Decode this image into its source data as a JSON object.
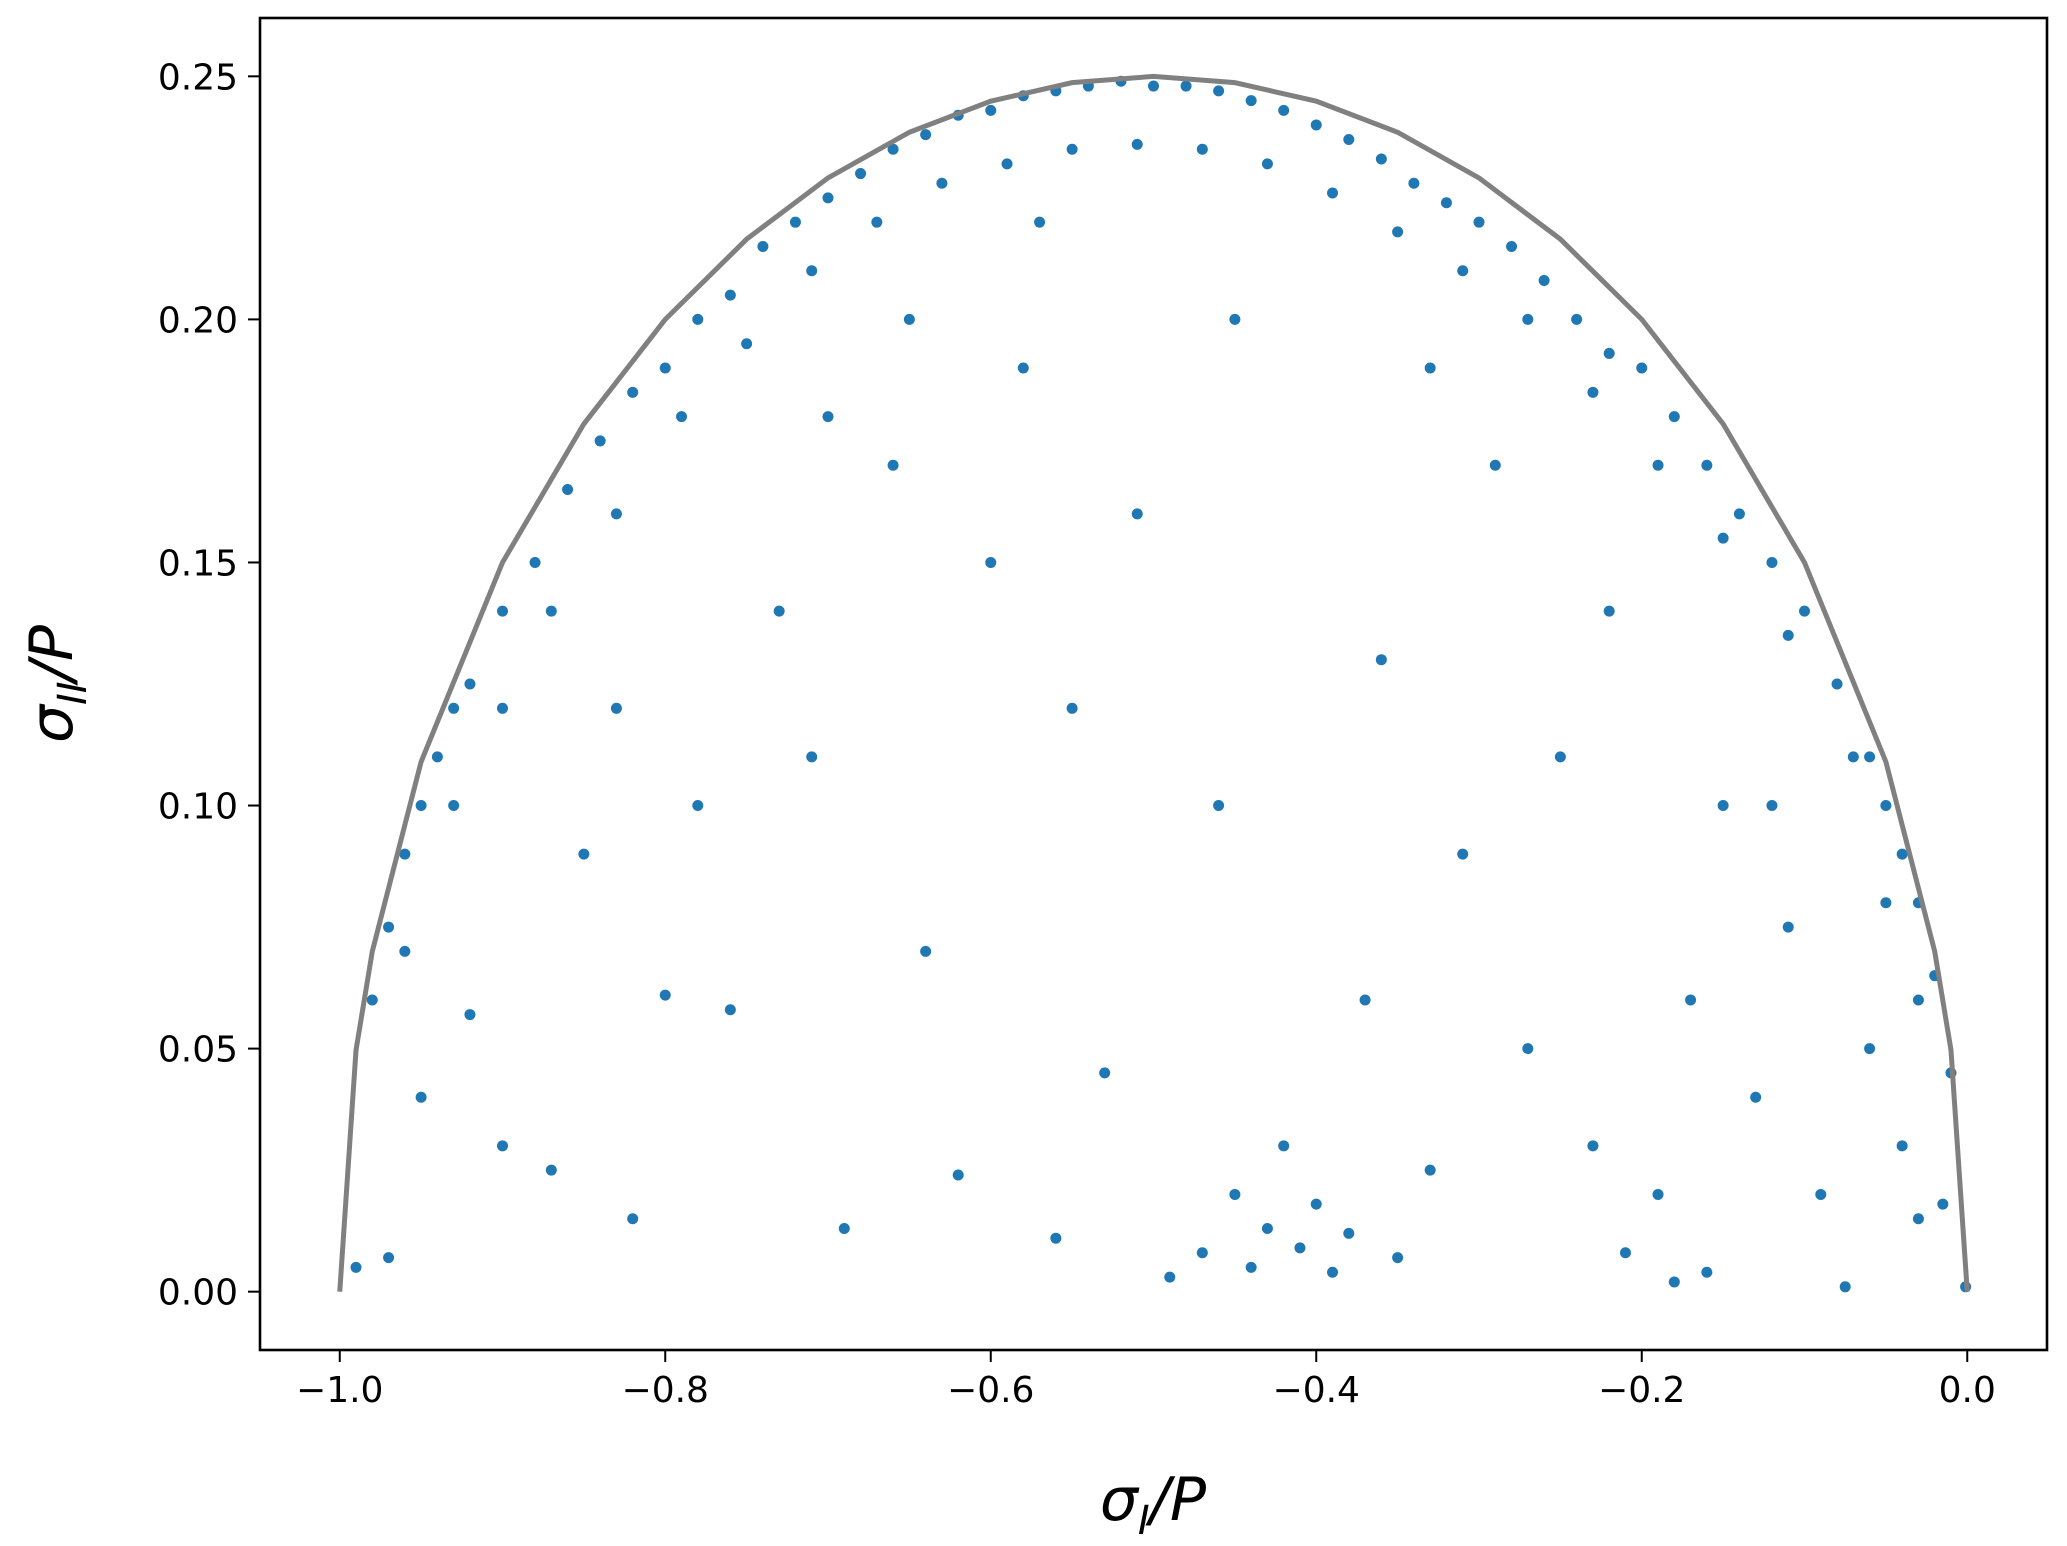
{
  "chart_data": {
    "type": "scatter",
    "xlabel": [
      "σ",
      "I",
      "/P"
    ],
    "ylabel": [
      "σ",
      "II",
      "/P"
    ],
    "xlim": [
      -1.049,
      0.049
    ],
    "ylim": [
      -0.012,
      0.262
    ],
    "xticks": [
      {
        "value": -1.0,
        "label": "−1.0"
      },
      {
        "value": -0.8,
        "label": "−0.8"
      },
      {
        "value": -0.6,
        "label": "−0.6"
      },
      {
        "value": -0.4,
        "label": "−0.4"
      },
      {
        "value": -0.2,
        "label": "−0.2"
      },
      {
        "value": 0,
        "label": "0.0"
      }
    ],
    "yticks": [
      {
        "value": 0,
        "label": "0.00"
      },
      {
        "value": 0.05,
        "label": "0.05"
      },
      {
        "value": 0.1,
        "label": "0.10"
      },
      {
        "value": 0.15,
        "label": "0.15"
      },
      {
        "value": 0.2,
        "label": "0.20"
      },
      {
        "value": 0.25,
        "label": "0.25"
      }
    ],
    "series": [
      {
        "type": "scatter",
        "color": "#1f77b4",
        "x": [
          -0.98,
          -0.97,
          -0.96,
          -0.95,
          -0.94,
          -0.93,
          -0.92,
          -0.9,
          -0.88,
          -0.86,
          -0.84,
          -0.82,
          -0.8,
          -0.78,
          -0.76,
          -0.74,
          -0.72,
          -0.7,
          -0.68,
          -0.66,
          -0.64,
          -0.62,
          -0.6,
          -0.58,
          -0.56,
          -0.54,
          -0.52,
          -0.5,
          -0.48,
          -0.46,
          -0.44,
          -0.42,
          -0.4,
          -0.38,
          -0.36,
          -0.34,
          -0.32,
          -0.3,
          -0.28,
          -0.26,
          -0.24,
          -0.22,
          -0.2,
          -0.18,
          -0.16,
          -0.14,
          -0.12,
          -0.1,
          -0.08,
          -0.06,
          -0.05,
          -0.04,
          -0.03,
          -0.02,
          -0.01,
          -0.96,
          -0.93,
          -0.9,
          -0.87,
          -0.83,
          -0.79,
          -0.75,
          -0.71,
          -0.67,
          -0.63,
          -0.59,
          -0.55,
          -0.51,
          -0.47,
          -0.43,
          -0.39,
          -0.35,
          -0.31,
          -0.27,
          -0.23,
          -0.19,
          -0.15,
          -0.11,
          -0.07,
          -0.05,
          -0.03,
          -0.95,
          -0.92,
          -0.9,
          -0.87,
          -0.85,
          -0.82,
          -0.8,
          -0.78,
          -0.76,
          -0.73,
          -0.71,
          -0.69,
          -0.66,
          -0.64,
          -0.62,
          -0.6,
          -0.58,
          -0.56,
          -0.55,
          -0.53,
          -0.51,
          -0.49,
          -0.47,
          -0.46,
          -0.45,
          -0.44,
          -0.43,
          -0.42,
          -0.41,
          -0.4,
          -0.39,
          -0.38,
          -0.37,
          -0.36,
          -0.35,
          -0.33,
          -0.31,
          -0.29,
          -0.27,
          -0.25,
          -0.23,
          -0.21,
          -0.19,
          -0.18,
          -0.17,
          -0.16,
          -0.15,
          -0.13,
          -0.11,
          -0.09,
          -0.075,
          -0.06,
          -0.04,
          -0.03,
          -0.015,
          -0.001,
          -0.99,
          -0.97,
          -0.83,
          -0.7,
          -0.65,
          -0.57,
          -0.45,
          -0.33,
          -0.22,
          -0.12
        ],
        "values": [
          0.06,
          0.075,
          0.09,
          0.1,
          0.11,
          0.12,
          0.125,
          0.14,
          0.15,
          0.165,
          0.175,
          0.185,
          0.19,
          0.2,
          0.205,
          0.215,
          0.22,
          0.225,
          0.23,
          0.235,
          0.238,
          0.242,
          0.243,
          0.246,
          0.247,
          0.248,
          0.249,
          0.248,
          0.248,
          0.247,
          0.245,
          0.243,
          0.24,
          0.237,
          0.233,
          0.228,
          0.224,
          0.22,
          0.215,
          0.208,
          0.2,
          0.193,
          0.19,
          0.18,
          0.17,
          0.16,
          0.15,
          0.14,
          0.125,
          0.11,
          0.1,
          0.09,
          0.08,
          0.065,
          0.045,
          0.07,
          0.1,
          0.12,
          0.14,
          0.16,
          0.18,
          0.195,
          0.21,
          0.22,
          0.228,
          0.232,
          0.235,
          0.236,
          0.235,
          0.232,
          0.226,
          0.218,
          0.21,
          0.2,
          0.185,
          0.17,
          0.155,
          0.135,
          0.11,
          0.08,
          0.06,
          0.04,
          0.057,
          0.03,
          0.025,
          0.09,
          0.015,
          0.061,
          0.1,
          0.058,
          0.14,
          0.11,
          0.013,
          0.17,
          0.07,
          0.024,
          0.15,
          0.19,
          0.011,
          0.12,
          0.045,
          0.16,
          0.003,
          0.008,
          0.1,
          0.02,
          0.005,
          0.013,
          0.03,
          0.009,
          0.018,
          0.004,
          0.012,
          0.06,
          0.13,
          0.007,
          0.025,
          0.09,
          0.17,
          0.05,
          0.11,
          0.03,
          0.008,
          0.02,
          0.002,
          0.06,
          0.004,
          0.1,
          0.04,
          0.075,
          0.02,
          0.001,
          0.05,
          0.03,
          0.015,
          0.018,
          0.001,
          0.005,
          0.007,
          0.12,
          0.18,
          0.2,
          0.22,
          0.2,
          0.19,
          0.14,
          0.1
        ]
      },
      {
        "type": "line",
        "color": "#808080",
        "x": [
          -1,
          -0.99,
          -0.98,
          -0.95,
          -0.9,
          -0.85,
          -0.8,
          -0.75,
          -0.7,
          -0.65,
          -0.6,
          -0.55,
          -0.5,
          -0.45,
          -0.4,
          -0.35,
          -0.3,
          -0.25,
          -0.2,
          -0.15,
          -0.1,
          -0.05,
          -0.02,
          -0.01,
          0
        ],
        "values": [
          0,
          0.0497,
          0.07,
          0.109,
          0.15,
          0.1785,
          0.2,
          0.2165,
          0.2291,
          0.2385,
          0.2449,
          0.2487,
          0.25,
          0.2487,
          0.2449,
          0.2385,
          0.2291,
          0.2165,
          0.2,
          0.1785,
          0.15,
          0.109,
          0.07,
          0.0497,
          0
        ]
      }
    ]
  }
}
